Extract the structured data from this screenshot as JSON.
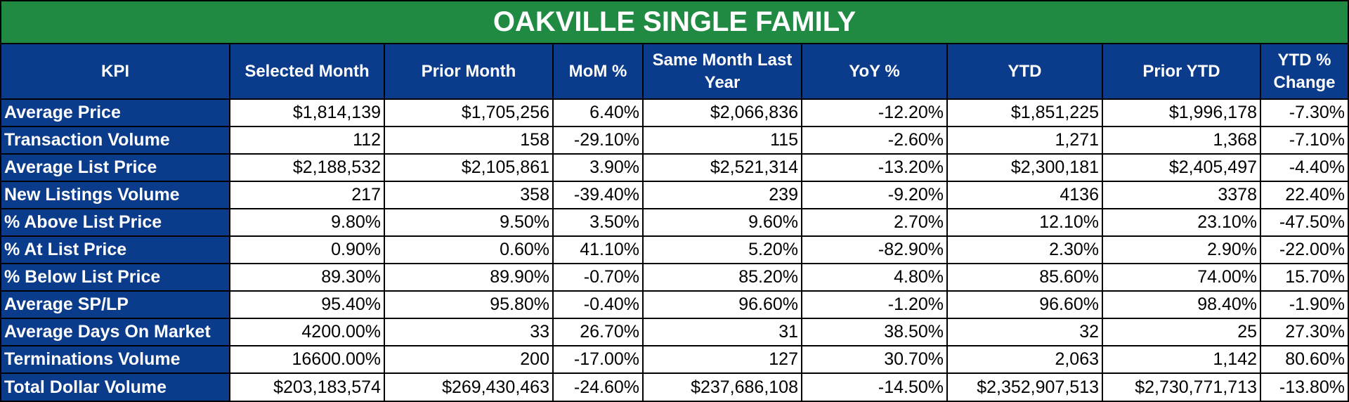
{
  "title": "OAKVILLE SINGLE FAMILY",
  "colors": {
    "title_bg": "#208a42",
    "header_bg": "#0b3c8c",
    "kpi_bg": "#0b3c8c",
    "header_text": "#ffffff"
  },
  "table": {
    "columns": [
      "KPI",
      "Selected Month",
      "Prior Month",
      "MoM %",
      "Same Month Last Year",
      "YoY %",
      "YTD",
      "Prior YTD",
      "YTD % Change"
    ],
    "rows": [
      [
        "Average Price",
        "$1,814,139",
        "$1,705,256",
        "6.40%",
        "$2,066,836",
        "-12.20%",
        "$1,851,225",
        "$1,996,178",
        "-7.30%"
      ],
      [
        "Transaction Volume",
        "112",
        "158",
        "-29.10%",
        "115",
        "-2.60%",
        "1,271",
        "1,368",
        "-7.10%"
      ],
      [
        "Average List Price",
        "$2,188,532",
        "$2,105,861",
        "3.90%",
        "$2,521,314",
        "-13.20%",
        "$2,300,181",
        "$2,405,497",
        "-4.40%"
      ],
      [
        "New Listings Volume",
        "217",
        "358",
        "-39.40%",
        "239",
        "-9.20%",
        "4136",
        "3378",
        "22.40%"
      ],
      [
        "% Above List Price",
        "9.80%",
        "9.50%",
        "3.50%",
        "9.60%",
        "2.70%",
        "12.10%",
        "23.10%",
        "-47.50%"
      ],
      [
        "% At List Price",
        "0.90%",
        "0.60%",
        "41.10%",
        "5.20%",
        "-82.90%",
        "2.30%",
        "2.90%",
        "-22.00%"
      ],
      [
        "% Below List Price",
        "89.30%",
        "89.90%",
        "-0.70%",
        "85.20%",
        "4.80%",
        "85.60%",
        "74.00%",
        "15.70%"
      ],
      [
        "Average SP/LP",
        "95.40%",
        "95.80%",
        "-0.40%",
        "96.60%",
        "-1.20%",
        "96.60%",
        "98.40%",
        "-1.90%"
      ],
      [
        "Average Days On Market",
        "4200.00%",
        "33",
        "26.70%",
        "31",
        "38.50%",
        "32",
        "25",
        "27.30%"
      ],
      [
        "Terminations Volume",
        "16600.00%",
        "200",
        "-17.00%",
        "127",
        "30.70%",
        "2,063",
        "1,142",
        "80.60%"
      ],
      [
        "Total Dollar Volume",
        "$203,183,574",
        "$269,430,463",
        "-24.60%",
        "$237,686,108",
        "-14.50%",
        "$2,352,907,513",
        "$2,730,771,713",
        "-13.80%"
      ]
    ]
  }
}
